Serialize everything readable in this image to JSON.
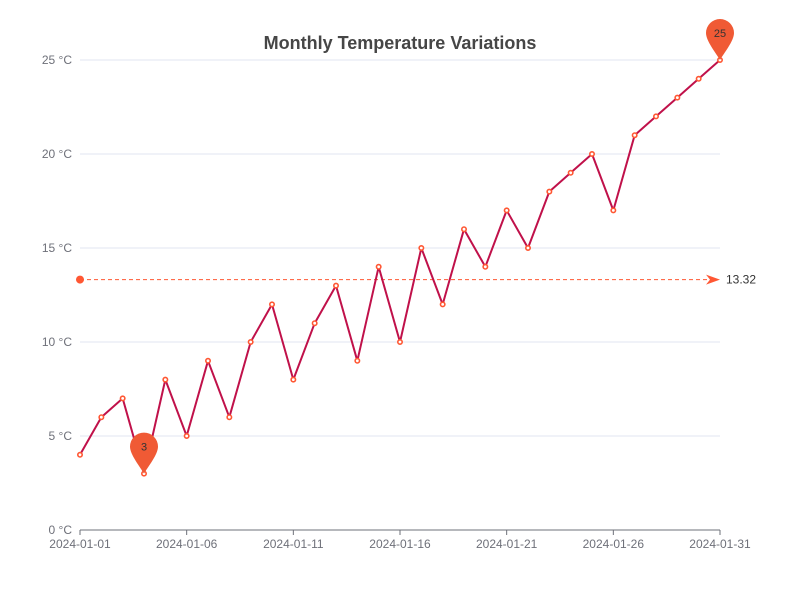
{
  "chart_data": {
    "type": "line",
    "title": "Monthly Temperature Variations",
    "xlabel": "",
    "ylabel": "",
    "x": [
      "2024-01-01",
      "2024-01-02",
      "2024-01-03",
      "2024-01-04",
      "2024-01-05",
      "2024-01-06",
      "2024-01-07",
      "2024-01-08",
      "2024-01-09",
      "2024-01-10",
      "2024-01-11",
      "2024-01-12",
      "2024-01-13",
      "2024-01-14",
      "2024-01-15",
      "2024-01-16",
      "2024-01-17",
      "2024-01-18",
      "2024-01-19",
      "2024-01-20",
      "2024-01-21",
      "2024-01-22",
      "2024-01-23",
      "2024-01-24",
      "2024-01-25",
      "2024-01-26",
      "2024-01-27",
      "2024-01-28",
      "2024-01-29",
      "2024-01-30",
      "2024-01-31"
    ],
    "series": [
      {
        "values": [
          4,
          6,
          7,
          3,
          8,
          5,
          9,
          6,
          10,
          12,
          8,
          11,
          13,
          9,
          14,
          10,
          15,
          12,
          16,
          14,
          17,
          15,
          18,
          19,
          20,
          17,
          21,
          22,
          23,
          24,
          25
        ],
        "color": "#c0114a",
        "marker_color": "#ff5733"
      }
    ],
    "x_tick_labels": [
      "2024-01-01",
      "2024-01-06",
      "2024-01-11",
      "2024-01-16",
      "2024-01-21",
      "2024-01-26",
      "2024-01-31"
    ],
    "y_ticks": [
      0,
      5,
      10,
      15,
      20,
      25
    ],
    "y_tick_labels": [
      "0 °C",
      "5 °C",
      "10 °C",
      "15 °C",
      "20 °C",
      "25 °C"
    ],
    "ylim": [
      0,
      25
    ],
    "grid": true,
    "legend": "none",
    "mark_points": [
      {
        "type": "min",
        "x": "2024-01-04",
        "y": 3,
        "label": "3"
      },
      {
        "type": "max",
        "x": "2024-01-31",
        "y": 25,
        "label": "25"
      }
    ],
    "mark_line": {
      "type": "average",
      "value": 13.32,
      "label": "13.32",
      "color": "#ff5733"
    }
  }
}
